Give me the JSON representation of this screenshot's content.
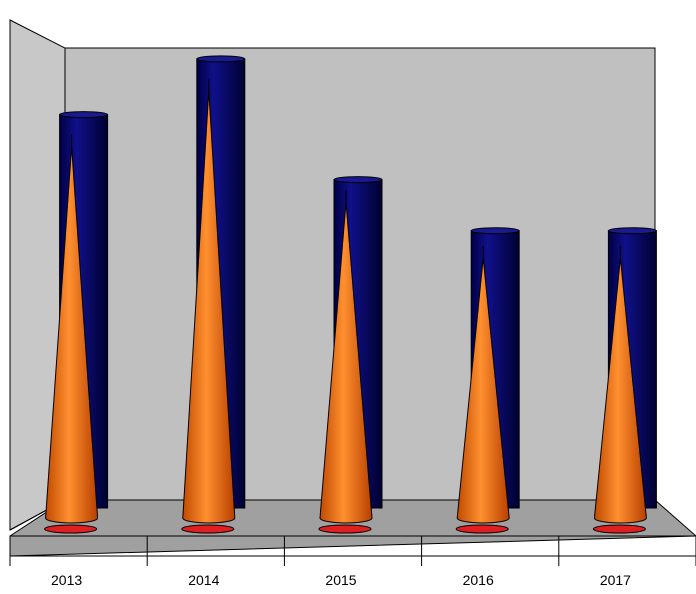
{
  "chart_data": {
    "type": "bar",
    "style": "3d-cylinder-and-cone",
    "categories": [
      "2013",
      "2014",
      "2015",
      "2016",
      "2017"
    ],
    "series": [
      {
        "shape": "cylinder",
        "color": "#0a0a78",
        "values": [
          8.3,
          9.5,
          6.9,
          5.8,
          5.8
        ]
      },
      {
        "shape": "cone",
        "color": "#ff7a1a",
        "values": [
          8.0,
          9.2,
          6.8,
          5.6,
          5.6
        ]
      },
      {
        "shape": "flat-disc",
        "color": "#e02020",
        "values": [
          0.1,
          0.1,
          0.05,
          0.05,
          0.05
        ]
      }
    ],
    "title": "",
    "xlabel": "",
    "ylabel": "",
    "ylim": [
      0,
      9.8
    ],
    "grid": false,
    "legend": "none",
    "colors": {
      "back_wall": "#c0c0c0",
      "side_wall": "#c8c8c8",
      "floor": "#a0a0a0"
    }
  }
}
